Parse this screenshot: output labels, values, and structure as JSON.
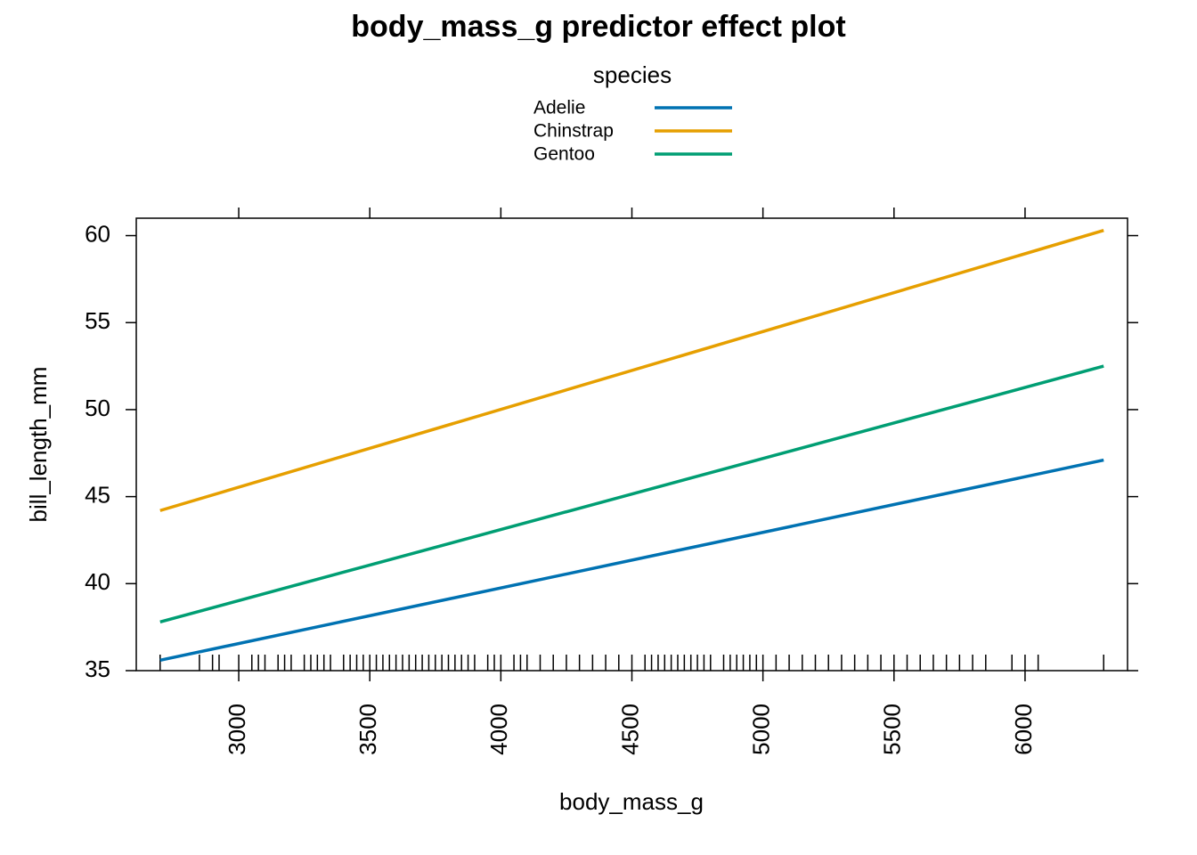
{
  "chart_data": {
    "type": "line",
    "title": "body_mass_g predictor effect plot",
    "x_label": "body_mass_g",
    "y_label": "bill_length_mm",
    "legend_title": "species",
    "x": [
      2700,
      6300
    ],
    "series": [
      {
        "name": "Adelie",
        "color": "#0072b2",
        "values": [
          35.6,
          47.1
        ]
      },
      {
        "name": "Chinstrap",
        "color": "#e69f00",
        "values": [
          44.2,
          60.3
        ]
      },
      {
        "name": "Gentoo",
        "color": "#009e73",
        "values": [
          37.8,
          52.5
        ]
      }
    ],
    "xlim": [
      2609,
      6391
    ],
    "ylim": [
      35,
      61
    ],
    "xticks": [
      3000,
      3500,
      4000,
      4500,
      5000,
      5500,
      6000
    ],
    "yticks": [
      35,
      40,
      45,
      50,
      55,
      60
    ],
    "rug": [
      2700,
      2850,
      2900,
      2925,
      3000,
      3050,
      3075,
      3100,
      3150,
      3175,
      3200,
      3250,
      3275,
      3300,
      3325,
      3350,
      3400,
      3425,
      3450,
      3475,
      3500,
      3525,
      3550,
      3575,
      3600,
      3625,
      3650,
      3675,
      3700,
      3725,
      3750,
      3775,
      3800,
      3825,
      3850,
      3875,
      3900,
      3950,
      3975,
      4000,
      4050,
      4075,
      4100,
      4150,
      4200,
      4250,
      4300,
      4350,
      4400,
      4450,
      4500,
      4550,
      4575,
      4600,
      4625,
      4650,
      4675,
      4700,
      4725,
      4750,
      4775,
      4800,
      4850,
      4875,
      4900,
      4925,
      4950,
      4975,
      5000,
      5050,
      5100,
      5150,
      5200,
      5250,
      5300,
      5350,
      5400,
      5450,
      5500,
      5550,
      5600,
      5650,
      5700,
      5750,
      5800,
      5850,
      5950,
      6000,
      6050,
      6300
    ]
  }
}
